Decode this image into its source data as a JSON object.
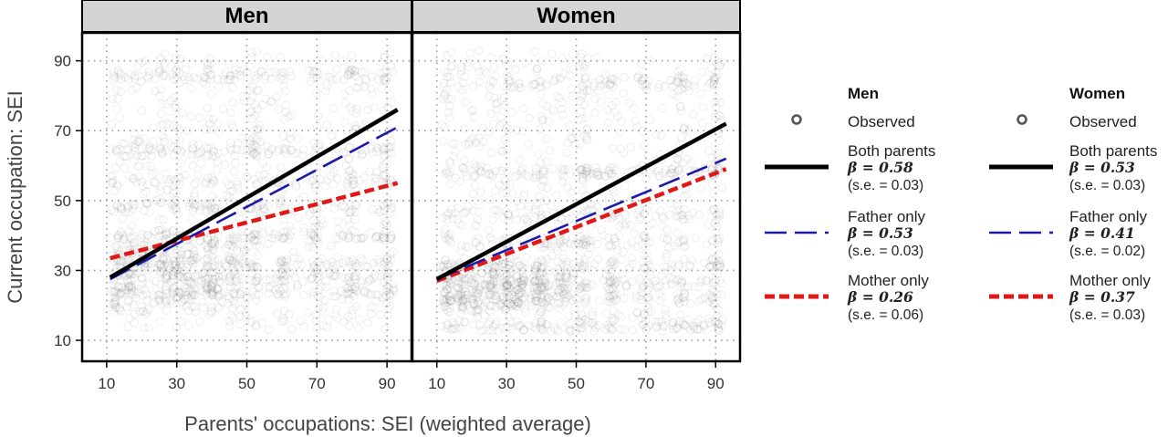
{
  "chart_data": {
    "type": "scatter",
    "xlabel": "Parents' occupations: SEI (weighted average)",
    "ylabel": "Current occupation: SEI",
    "xlim": [
      3,
      97
    ],
    "ylim": [
      4,
      98
    ],
    "xticks": [
      10,
      30,
      50,
      70,
      90
    ],
    "yticks": [
      10,
      30,
      50,
      70,
      90
    ],
    "grid": true,
    "legend_position": "right",
    "observed_label": "Observed",
    "panels": [
      {
        "name": "Men",
        "lines": [
          {
            "name": "Both parents",
            "beta": "β = 0.58",
            "se": "(s.e. = 0.03)",
            "style": "solid",
            "color": "#000000",
            "x": [
              11,
              93
            ],
            "y": [
              28,
              76
            ]
          },
          {
            "name": "Father only",
            "beta": "β = 0.53",
            "se": "(s.e. = 0.03)",
            "style": "longdash",
            "color": "#1a1aa8",
            "x": [
              11,
              93
            ],
            "y": [
              27.5,
              71
            ]
          },
          {
            "name": "Mother only",
            "beta": "β = 0.26",
            "se": "(s.e. = 0.06)",
            "style": "dash",
            "color": "#e01818",
            "x": [
              11,
              93
            ],
            "y": [
              33.5,
              55
            ]
          }
        ]
      },
      {
        "name": "Women",
        "lines": [
          {
            "name": "Both parents",
            "beta": "β = 0.53",
            "se": "(s.e. = 0.03)",
            "style": "solid",
            "color": "#000000",
            "x": [
              10,
              93
            ],
            "y": [
              27.5,
              72
            ]
          },
          {
            "name": "Father only",
            "beta": "β = 0.41",
            "se": "(s.e. = 0.02)",
            "style": "longdash",
            "color": "#1a1aa8",
            "x": [
              10,
              93
            ],
            "y": [
              27.5,
              62
            ]
          },
          {
            "name": "Mother only",
            "beta": "β = 0.37",
            "se": "(s.e. = 0.03)",
            "style": "dash",
            "color": "#e01818",
            "x": [
              10,
              93
            ],
            "y": [
              27,
              59
            ]
          }
        ]
      }
    ]
  }
}
